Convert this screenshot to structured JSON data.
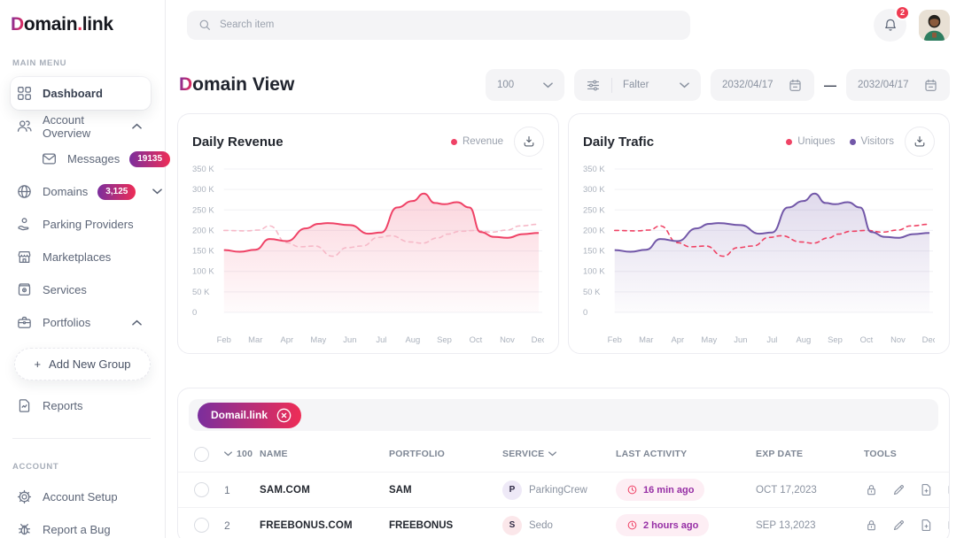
{
  "theme": {
    "accent_start": "#7b2e9d",
    "accent_end": "#ee2d56",
    "notif": "#ef3a51",
    "chart_red": "#ef4266",
    "chart_pink": "#f6b9c8",
    "chart_purple": "#7257a8"
  },
  "brand": {
    "first": "D",
    "mid": "omain",
    "dot": ".",
    "last": "link"
  },
  "sidebar": {
    "main_menu_label": "MAIN MENU",
    "account_label": "ACCOUNT",
    "dashboard": "Dashboard",
    "account_overview": "Account Overview",
    "messages": "Messages",
    "messages_badge": "19135",
    "domains": "Domains",
    "domains_badge": "3,125",
    "parking_providers": "Parking Providers",
    "marketplaces": "Marketplaces",
    "services": "Services",
    "portfolios": "Portfolios",
    "add_new_group_plus": "+",
    "add_new_group": "Add New Group",
    "reports": "Reports",
    "account_setup": "Account Setup",
    "report_a_bug": "Report a Bug"
  },
  "topbar": {
    "search_placeholder": "Search item",
    "notification_count": "2"
  },
  "page": {
    "title_accent": "D",
    "title_rest": "omain View",
    "page_size": "100",
    "filter_label": "Falter",
    "date_from": "2032/04/17",
    "date_separator": "—",
    "date_to": "2032/04/17"
  },
  "chart_data": [
    {
      "type": "area-line",
      "title": "Daily Revenue",
      "x_labels": [
        "Feb",
        "Mar",
        "Apr",
        "May",
        "Jun",
        "Jul",
        "Aug",
        "Sep",
        "Oct",
        "Nov",
        "Dec"
      ],
      "y_ticks": [
        "350 K",
        "300 K",
        "250 K",
        "200 K",
        "150 K",
        "100 K",
        "50 K",
        "0"
      ],
      "ylim": [
        0,
        350
      ],
      "unit": "K",
      "grid": true,
      "legend": [
        {
          "label": "Revenue",
          "color": "#ef4266"
        }
      ],
      "series": [
        {
          "name": "Revenue (prev)",
          "style": "dashed",
          "color": "#f6b9c8",
          "fill": false,
          "points": [
            [
              0,
              200
            ],
            [
              0.7,
              199
            ],
            [
              1.1,
              201
            ],
            [
              1.45,
              211
            ],
            [
              2,
              170
            ],
            [
              2.4,
              160
            ],
            [
              2.9,
              162
            ],
            [
              3.45,
              137
            ],
            [
              3.9,
              158
            ],
            [
              4.4,
              162
            ],
            [
              4.9,
              183
            ],
            [
              5.3,
              187
            ],
            [
              5.9,
              172
            ],
            [
              6.3,
              169
            ],
            [
              6.8,
              182
            ],
            [
              7.1,
              191
            ],
            [
              7.5,
              198
            ],
            [
              8,
              200
            ],
            [
              8.5,
              196
            ],
            [
              9,
              201
            ],
            [
              9.4,
              211
            ],
            [
              10,
              215
            ]
          ]
        },
        {
          "name": "Revenue",
          "style": "solid",
          "color": "#ef4266",
          "fill": true,
          "points": [
            [
              0,
              152
            ],
            [
              0.5,
              148
            ],
            [
              1,
              153
            ],
            [
              1.45,
              179
            ],
            [
              2,
              174
            ],
            [
              2.6,
              205
            ],
            [
              3,
              216
            ],
            [
              3.3,
              218
            ],
            [
              4,
              213
            ],
            [
              4.6,
              192
            ],
            [
              5,
              195
            ],
            [
              5.5,
              256
            ],
            [
              6,
              272
            ],
            [
              6.35,
              290
            ],
            [
              6.7,
              267
            ],
            [
              7,
              264
            ],
            [
              7.4,
              269
            ],
            [
              7.8,
              256
            ],
            [
              8.15,
              196
            ],
            [
              8.6,
              184
            ],
            [
              9,
              182
            ],
            [
              9.5,
              191
            ],
            [
              10,
              194
            ]
          ]
        }
      ]
    },
    {
      "type": "area-line",
      "title": "Daily Trafic",
      "x_labels": [
        "Feb",
        "Mar",
        "Apr",
        "May",
        "Jun",
        "Jul",
        "Aug",
        "Sep",
        "Oct",
        "Nov",
        "Dec"
      ],
      "y_ticks": [
        "350 K",
        "300 K",
        "250 K",
        "200 K",
        "150 K",
        "100 K",
        "50 K",
        "0"
      ],
      "ylim": [
        0,
        350
      ],
      "unit": "K",
      "grid": true,
      "legend": [
        {
          "label": "Uniques",
          "color": "#ef4365"
        },
        {
          "label": "Visitors",
          "color": "#7257a8"
        }
      ],
      "series": [
        {
          "name": "Uniques",
          "style": "dashed",
          "color": "#ef4365",
          "fill": false,
          "points": [
            [
              0,
              200
            ],
            [
              0.7,
              199
            ],
            [
              1.1,
              201
            ],
            [
              1.45,
              211
            ],
            [
              2,
              170
            ],
            [
              2.4,
              160
            ],
            [
              2.9,
              162
            ],
            [
              3.45,
              137
            ],
            [
              3.9,
              158
            ],
            [
              4.4,
              162
            ],
            [
              4.9,
              183
            ],
            [
              5.3,
              187
            ],
            [
              5.9,
              172
            ],
            [
              6.3,
              169
            ],
            [
              6.8,
              182
            ],
            [
              7.1,
              191
            ],
            [
              7.5,
              198
            ],
            [
              8,
              200
            ],
            [
              8.5,
              196
            ],
            [
              9,
              201
            ],
            [
              9.4,
              211
            ],
            [
              10,
              215
            ]
          ]
        },
        {
          "name": "Visitors",
          "style": "solid",
          "color": "#7257a8",
          "fill": true,
          "points": [
            [
              0,
              152
            ],
            [
              0.5,
              148
            ],
            [
              1,
              153
            ],
            [
              1.45,
              179
            ],
            [
              2,
              174
            ],
            [
              2.6,
              205
            ],
            [
              3,
              216
            ],
            [
              3.3,
              218
            ],
            [
              4,
              213
            ],
            [
              4.6,
              192
            ],
            [
              5,
              195
            ],
            [
              5.5,
              256
            ],
            [
              6,
              272
            ],
            [
              6.35,
              290
            ],
            [
              6.7,
              267
            ],
            [
              7,
              264
            ],
            [
              7.4,
              269
            ],
            [
              7.8,
              256
            ],
            [
              8.15,
              196
            ],
            [
              8.6,
              184
            ],
            [
              9,
              182
            ],
            [
              9.5,
              191
            ],
            [
              10,
              194
            ]
          ]
        }
      ]
    }
  ],
  "table": {
    "filter_chip": "Domail.link",
    "columns": {
      "select_count": "100",
      "name": "NAME",
      "portfolio": "PORTFOLIO",
      "service": "SERVICE",
      "last_activity": "LAST ACTIVITY",
      "exp_date": "EXP DATE",
      "tools": "TOOLS"
    },
    "rows": [
      {
        "num": "1",
        "name": "SAM.COM",
        "portfolio": "SAM",
        "service_initial": "P",
        "service_name": "ParkingCrew",
        "last_activity": "16 min ago",
        "exp_date": "OCT 17,2023"
      },
      {
        "num": "2",
        "name": "FREEBONUS.COM",
        "portfolio": "FREEBONUS",
        "service_initial": "S",
        "service_name": "Sedo",
        "last_activity": "2 hours ago",
        "exp_date": "SEP 13,2023"
      }
    ]
  }
}
